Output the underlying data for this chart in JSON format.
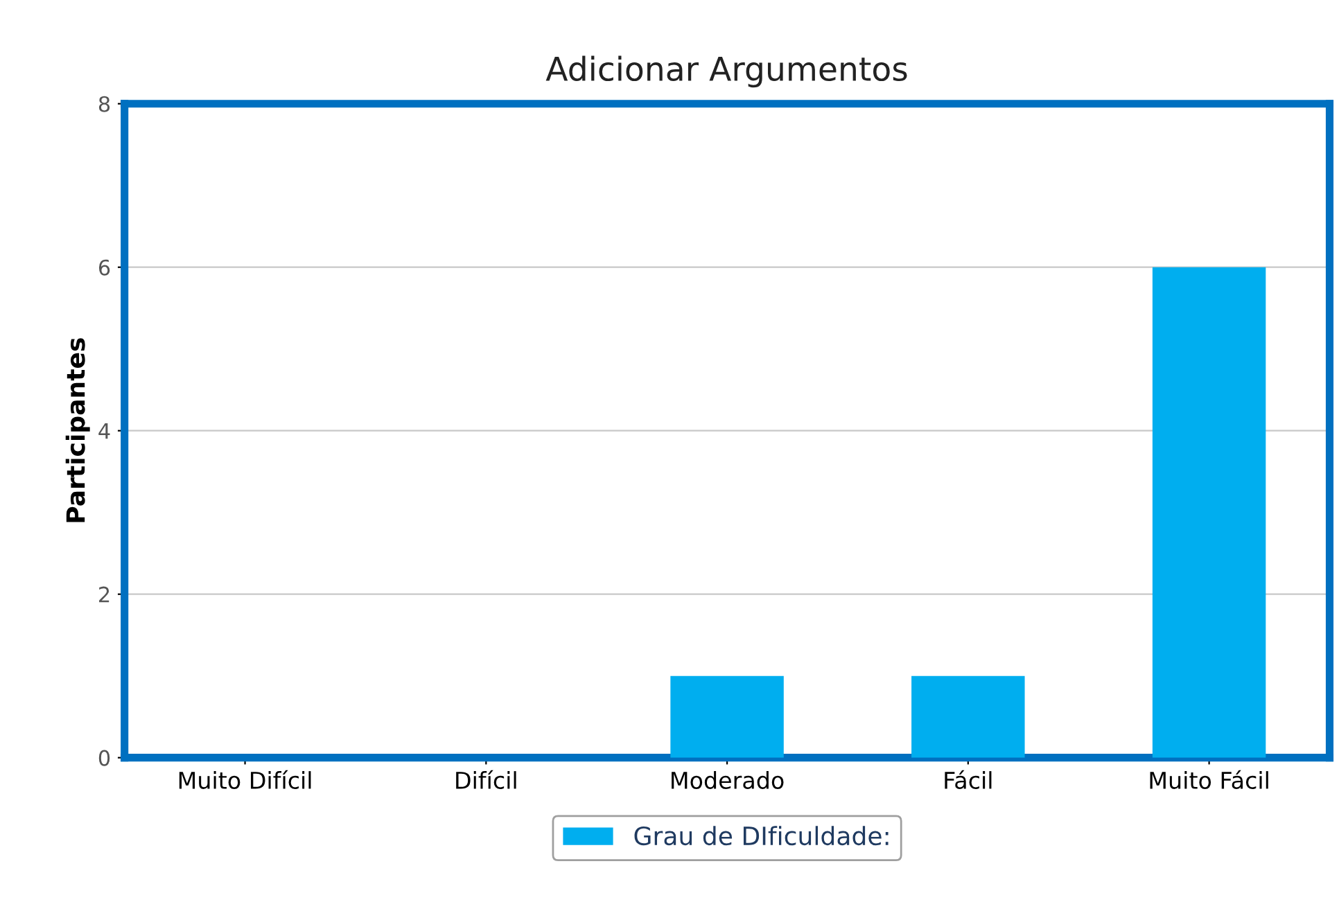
{
  "chart_data": {
    "type": "bar",
    "title": "Adicionar Argumentos",
    "ylabel": "Participantes",
    "categories": [
      "Muito Difícil",
      "Difícil",
      "Moderado",
      "Fácil",
      "Muito Fácil"
    ],
    "series": [
      {
        "name": "Grau de DIficuldade:",
        "color": "#00aeef",
        "values": [
          0,
          0,
          1,
          1,
          6
        ]
      }
    ],
    "ylim": [
      0,
      8
    ],
    "yticks": [
      0,
      2,
      4,
      6,
      8
    ],
    "grid": "y",
    "legend": "bottom"
  }
}
